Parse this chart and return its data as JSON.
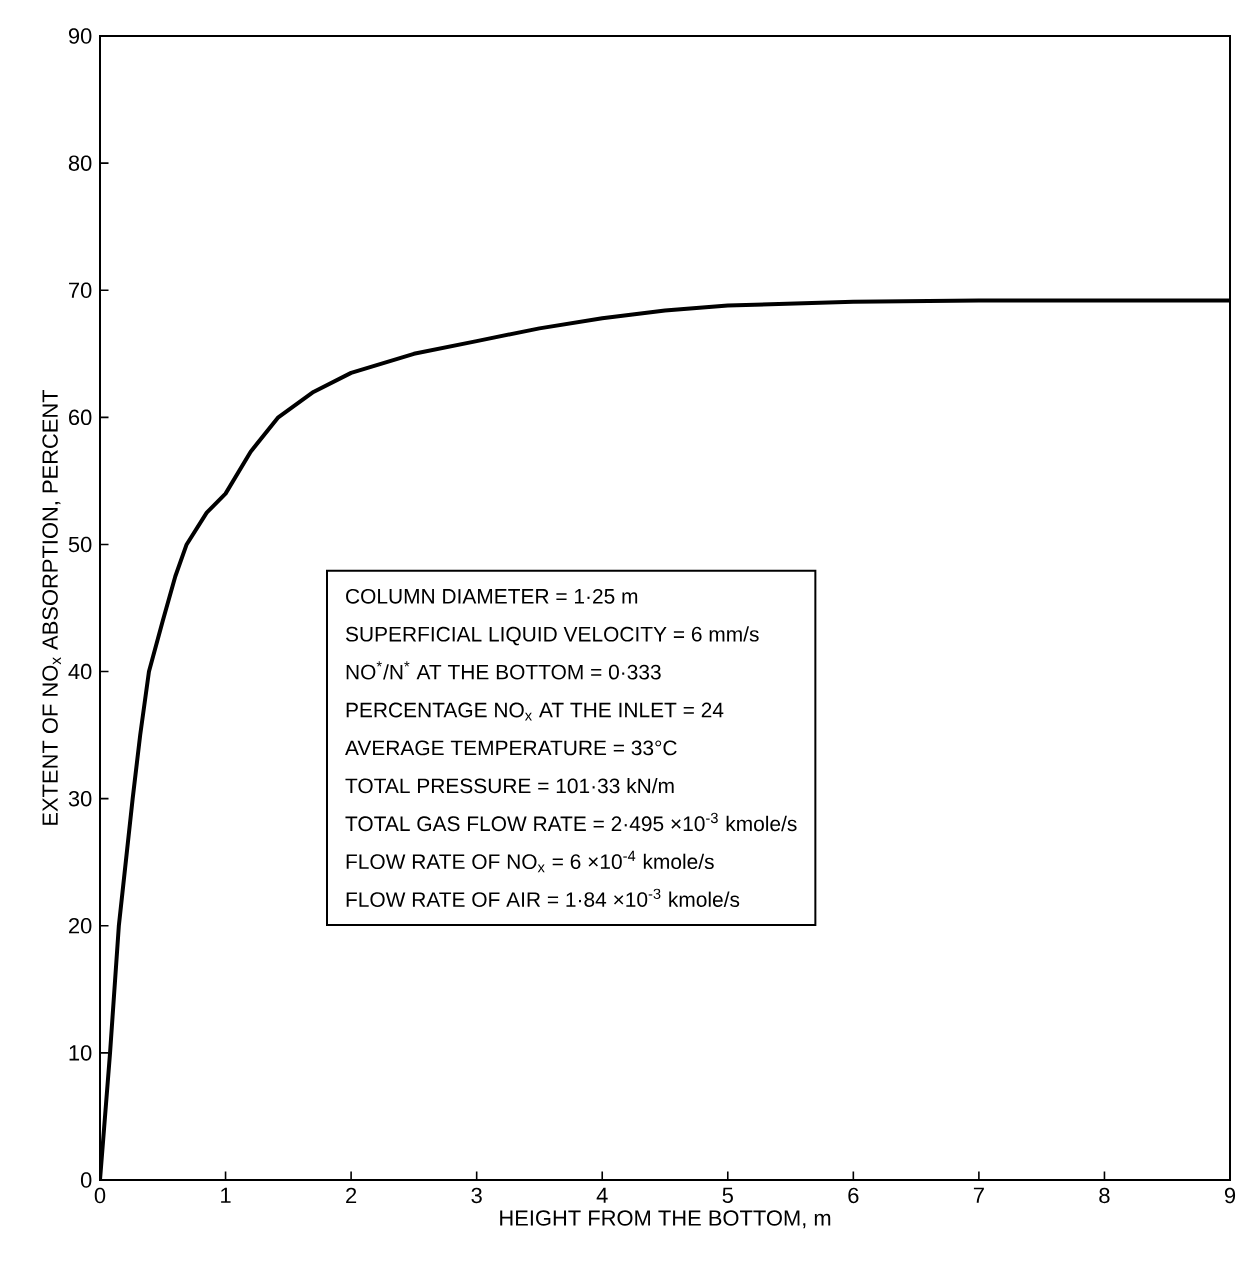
{
  "chart_data": {
    "type": "line",
    "xlabel": "HEIGHT FROM THE BOTTOM, m",
    "ylabel": "EXTENT OF NO$_{x}$ ABSORPTION, PERCENT",
    "x": [
      0,
      0.08,
      0.15,
      0.26,
      0.32,
      0.39,
      0.5,
      0.6,
      0.69,
      0.85,
      1,
      1.2,
      1.42,
      1.7,
      2,
      2.5,
      3,
      3.5,
      4,
      4.5,
      5,
      6,
      7,
      8,
      9
    ],
    "values": [
      0,
      10,
      20,
      30,
      35,
      40,
      44,
      47.5,
      50,
      52.5,
      54,
      57.3,
      60,
      62,
      63.5,
      65,
      66,
      67,
      67.8,
      68.4,
      68.8,
      69.1,
      69.2,
      69.2,
      69.2
    ],
    "color": "#000000",
    "xlim": [
      0,
      9
    ],
    "ylim": [
      0,
      90
    ],
    "xticks": [
      0,
      1,
      2,
      3,
      4,
      5,
      6,
      7,
      8,
      9
    ],
    "yticks": [
      0,
      10,
      20,
      30,
      40,
      50,
      60,
      70,
      80,
      90
    ],
    "grid": false,
    "marker": "none",
    "line_style": "solid",
    "annotations": [
      "COLUMN DIAMETER = 1·25 m",
      "SUPERFICIAL LIQUID VELOCITY = 6 mm/s",
      "NO$^{*}$/N$^{*}$ AT THE BOTTOM = 0·333",
      "PERCENTAGE NO$_{x}$ AT THE INLET = 24",
      "AVERAGE TEMPERATURE = 33°C",
      "TOTAL PRESSURE = 101·33 kN/m",
      "TOTAL GAS FLOW RATE = 2·495 ×10$^{-3}$ kmole/s",
      "FLOW RATE OF NO$_{x}$ = 6 ×10$^{-4}$ kmole/s",
      "FLOW RATE OF AIR = 1·84 ×10$^{-3}$ kmole/s"
    ]
  }
}
